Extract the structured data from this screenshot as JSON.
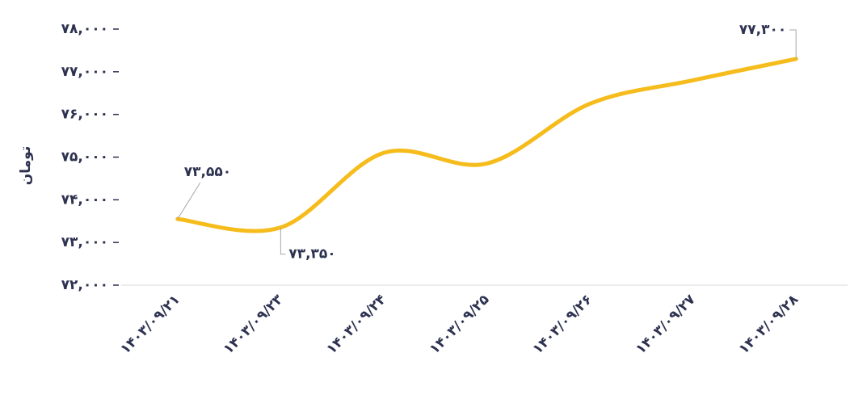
{
  "chart_data": {
    "type": "line",
    "y_label": "تومان",
    "categories": [
      "۱۴۰۳/۰۹/۲۱",
      "۱۴۰۳/۰۹/۲۳",
      "۱۴۰۳/۰۹/۲۴",
      "۱۴۰۳/۰۹/۲۵",
      "۱۴۰۳/۰۹/۲۶",
      "۱۴۰۳/۰۹/۲۷",
      "۱۴۰۳/۰۹/۲۸"
    ],
    "series": [
      {
        "color": "#f5bc1c",
        "values": [
          73550,
          73350,
          75100,
          74850,
          76250,
          76800,
          77300
        ],
        "value_labels": [
          "۷۳,۵۵۰",
          "۷۳,۳۵۰",
          null,
          null,
          null,
          null,
          "۷۷,۳۰۰"
        ]
      }
    ],
    "ylim": [
      72000,
      78000
    ],
    "yticks": [
      {
        "value": 72000,
        "label": "۷۲,۰۰۰"
      },
      {
        "value": 73000,
        "label": "۷۳,۰۰۰"
      },
      {
        "value": 74000,
        "label": "۷۴,۰۰۰"
      },
      {
        "value": 75000,
        "label": "۷۵,۰۰۰"
      },
      {
        "value": 76000,
        "label": "۷۶,۰۰۰"
      },
      {
        "value": 77000,
        "label": "۷۷,۰۰۰"
      },
      {
        "value": 78000,
        "label": "۷۸,۰۰۰"
      }
    ]
  }
}
